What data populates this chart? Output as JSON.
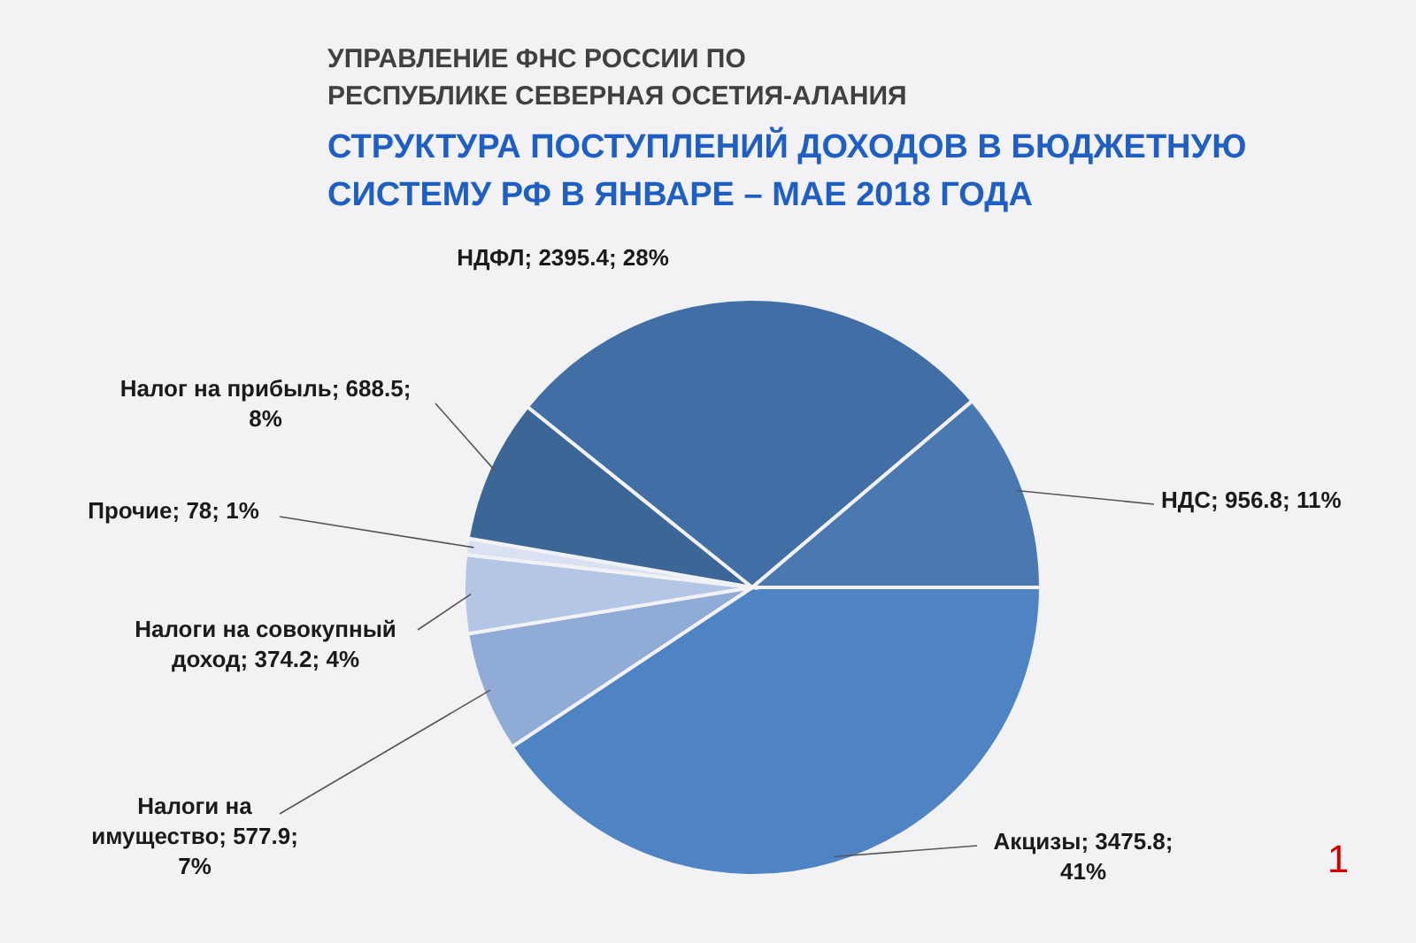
{
  "chart_data": {
    "type": "pie",
    "subtitle": "УПРАВЛЕНИЕ ФНС РОССИИ ПО РЕСПУБЛИКЕ СЕВЕРНАЯ ОСЕТИЯ-АЛАНИЯ",
    "title": "СТРУКТУРА ПОСТУПЛЕНИЙ ДОХОДОВ В БЮДЖЕТНУЮ СИСТЕМУ РФ В ЯНВАРЕ – МАЕ 2018 ГОДА",
    "categories": [
      "Акцизы",
      "Налоги на имущество",
      "Налоги на совокупный доход",
      "Прочие",
      "Налог на прибыль",
      "НДФЛ",
      "НДС"
    ],
    "values": [
      3475.8,
      577.9,
      374.2,
      78,
      688.5,
      2395.4,
      956.8
    ],
    "value_labels": [
      "3475.8; 41%",
      "577.9; 7%",
      "374.2; 4%",
      "78; 1%",
      "688.5; 8%",
      "2395.4; 28%",
      "956.8; 11%"
    ],
    "colors": [
      "#4f84c4",
      "#91abd7",
      "#b3c6e6",
      "#d9e1f2",
      "#3c6696",
      "#416ea4",
      "#4a78b1"
    ],
    "annotations": [
      "1"
    ]
  }
}
